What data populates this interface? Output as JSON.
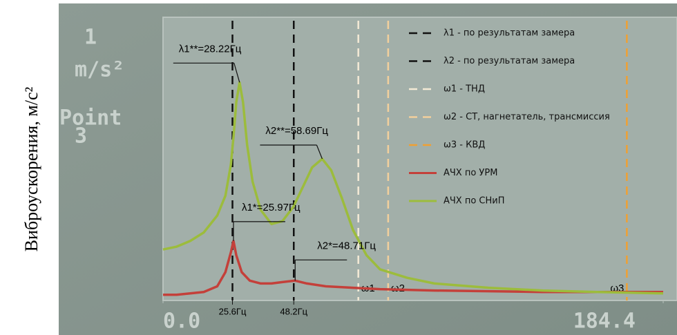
{
  "chart_data": {
    "type": "line",
    "y_label": "Виброускорения, м/с²",
    "screen_texts": [
      "1",
      "m/s²",
      "Point",
      "3"
    ],
    "xlim": [
      0,
      184.4
    ],
    "xticks": [
      {
        "value": 0,
        "label": "0.0"
      },
      184.4
    ],
    "marked_x": [
      {
        "value": 25.6,
        "label": "25.6Гц"
      },
      {
        "value": 48.2,
        "label": "48.2Гц"
      }
    ],
    "ylim": [
      0,
      1
    ],
    "vlines": [
      {
        "name": "λ1 - по результатам замера",
        "x": 25.6,
        "color": "#111111"
      },
      {
        "name": "λ2 - по результатам замера",
        "x": 48.2,
        "color": "#111111"
      },
      {
        "name": "ω1 - ТНД",
        "label": "ω1",
        "x": 72,
        "color": "#f4ead6"
      },
      {
        "name": "ω2 - СТ, нагнетатель, трансмиссия",
        "label": "ω2",
        "x": 83,
        "color": "#f2cf9c"
      },
      {
        "name": "ω3 - КВД",
        "label": "ω3",
        "x": 171,
        "color": "#f0a032"
      }
    ],
    "series": [
      {
        "name": "АЧХ по УРМ",
        "color": "#c4403a",
        "x": [
          0,
          5,
          10,
          15,
          20,
          23,
          25,
          25.97,
          27,
          29,
          32,
          36,
          40,
          44,
          48.71,
          53,
          60,
          70,
          80,
          100,
          140,
          184.4
        ],
        "values": [
          0.02,
          0.02,
          0.025,
          0.03,
          0.05,
          0.1,
          0.17,
          0.21,
          0.16,
          0.1,
          0.07,
          0.06,
          0.06,
          0.065,
          0.07,
          0.06,
          0.05,
          0.045,
          0.04,
          0.035,
          0.03,
          0.03
        ]
      },
      {
        "name": "АЧХ по СНиП",
        "color": "#9cbc3c",
        "x": [
          0,
          5,
          10,
          15,
          20,
          23,
          25,
          26,
          27,
          28.22,
          29.5,
          31,
          33,
          36,
          40,
          44,
          48,
          52,
          55,
          58.69,
          62,
          66,
          70,
          75,
          80,
          90,
          100,
          120,
          140,
          160,
          184.4
        ],
        "values": [
          0.18,
          0.19,
          0.21,
          0.24,
          0.3,
          0.37,
          0.48,
          0.58,
          0.7,
          0.77,
          0.7,
          0.55,
          0.42,
          0.32,
          0.27,
          0.28,
          0.33,
          0.41,
          0.47,
          0.5,
          0.46,
          0.36,
          0.25,
          0.16,
          0.11,
          0.08,
          0.06,
          0.045,
          0.035,
          0.03,
          0.025
        ]
      }
    ],
    "annotations": [
      {
        "text": "λ1**=28.22Гц",
        "x": 28.22,
        "y": 0.77
      },
      {
        "text": "λ2**=58.69Гц",
        "x": 58.69,
        "y": 0.5
      },
      {
        "text": "λ1*=25.97Гц",
        "x": 25.97,
        "y": 0.21
      },
      {
        "text": "λ2*=48.71Гц",
        "x": 48.71,
        "y": 0.07
      }
    ]
  }
}
